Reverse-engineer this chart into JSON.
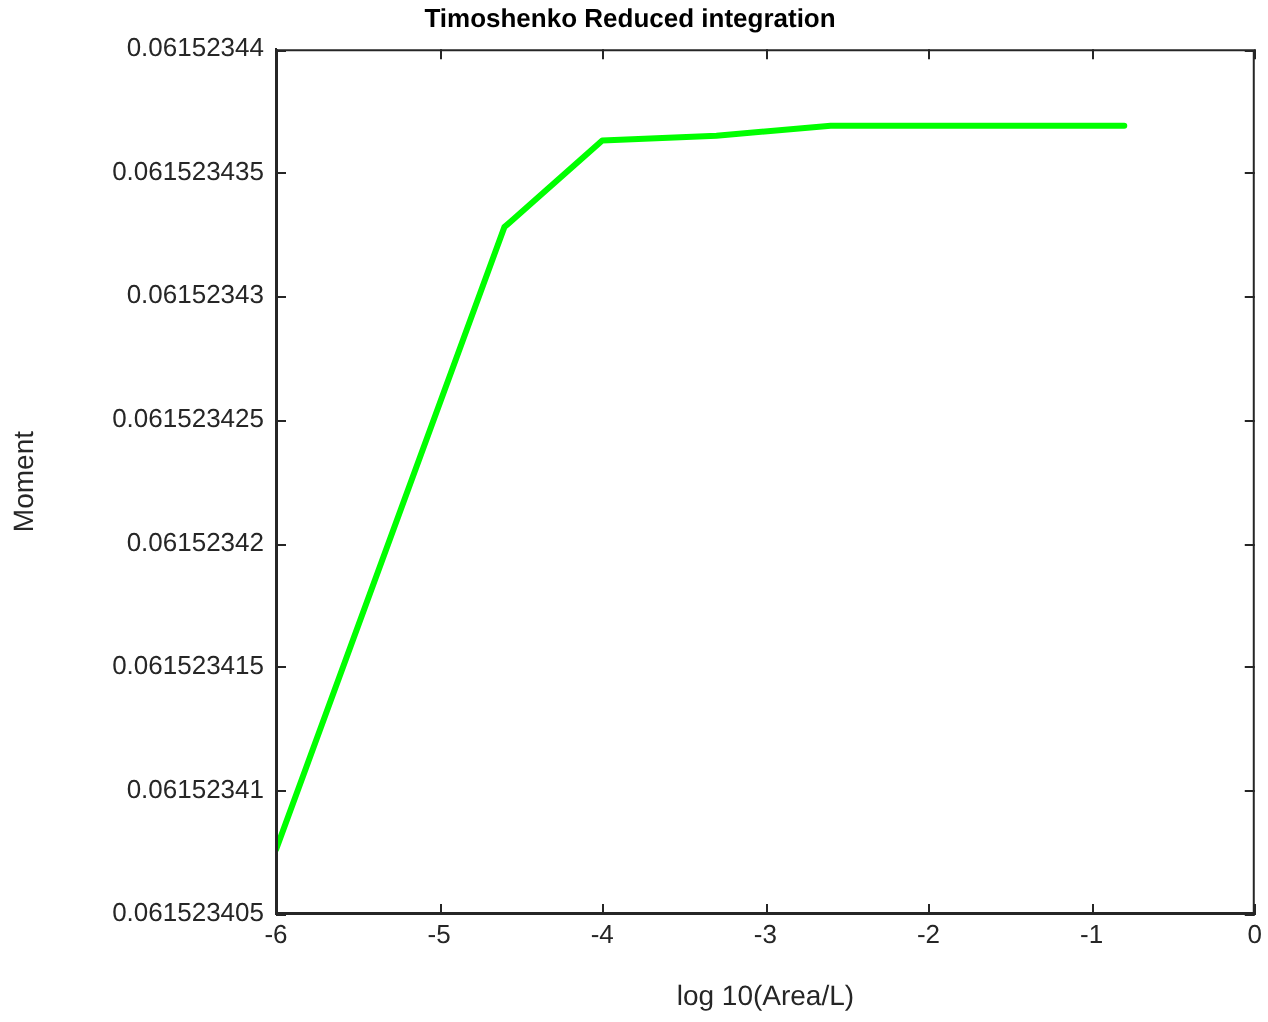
{
  "chart_data": {
    "type": "line",
    "title": "Timoshenko Reduced integration",
    "xlabel": "log 10(Area/L)",
    "ylabel": "Moment",
    "x": [
      -6,
      -4.6,
      -4,
      -3.3,
      -2.6,
      -0.8
    ],
    "series": [
      {
        "color": "#00ff00",
        "values": [
          0.0615234076,
          0.0615234328,
          0.0615234363,
          0.0615234365,
          0.0615234369,
          0.0615234369
        ]
      }
    ],
    "xlim": [
      -6,
      0
    ],
    "xticks": [
      -6,
      -5,
      -4,
      -3,
      -2,
      -1,
      0
    ],
    "ylim": [
      0.061523405,
      0.06152344
    ],
    "yticks": [
      0.061523405,
      0.06152341,
      0.061523415,
      0.06152342,
      0.061523425,
      0.06152343,
      0.061523435,
      0.06152344
    ],
    "grid": false,
    "legend": false,
    "marker": "none",
    "line_style": "solid"
  }
}
